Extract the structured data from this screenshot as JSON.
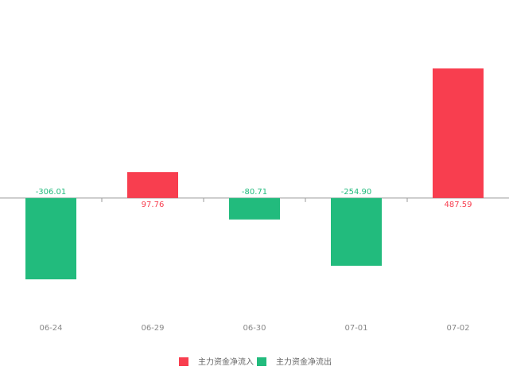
{
  "chart_data": {
    "type": "bar",
    "categories": [
      "06-24",
      "06-29",
      "06-30",
      "07-01",
      "07-02"
    ],
    "series": [
      {
        "name": "主力资金净流入",
        "color": "#f83e4f",
        "values": [
          null,
          97.76,
          null,
          null,
          487.59
        ],
        "value_labels": [
          null,
          "97.76",
          null,
          null,
          "487.59"
        ]
      },
      {
        "name": "主力资金净流出",
        "color": "#22bb7d",
        "values": [
          -306.01,
          null,
          -80.71,
          -254.9,
          null
        ],
        "value_labels": [
          "-306.01",
          null,
          "-80.71",
          "-254.90",
          null
        ]
      }
    ]
  }
}
